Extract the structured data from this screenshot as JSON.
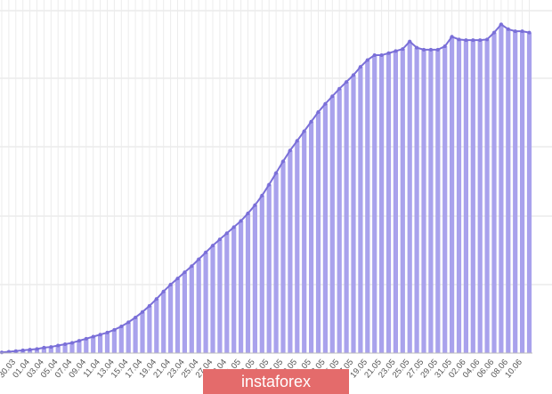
{
  "chart_data": {
    "type": "bar",
    "categories": [
      null,
      "30.03",
      null,
      "01.04",
      null,
      "03.04",
      null,
      "05.04",
      null,
      "07.04",
      null,
      "09.04",
      null,
      "11.04",
      null,
      "13.04",
      null,
      "15.04",
      null,
      "17.04",
      null,
      "19.04",
      null,
      "21.04",
      null,
      "23.04",
      null,
      "25.04",
      null,
      "27.04",
      null,
      "29.04",
      null,
      "01.05",
      null,
      "03.05",
      null,
      "05.05",
      null,
      "07.05",
      null,
      "09.05",
      null,
      "11.05",
      null,
      "13.05",
      null,
      "15.05",
      null,
      "17.05",
      null,
      "19.05",
      null,
      "21.05",
      null,
      "23.05",
      null,
      "25.05",
      null,
      "27.05",
      null,
      "29.05",
      null,
      "31.05",
      null,
      "02.06",
      null,
      "04.06",
      null,
      "06.06",
      null,
      "08.06",
      null,
      "10.06",
      null,
      null
    ],
    "values": [
      0.01,
      0.02,
      0.03,
      0.04,
      0.05,
      0.06,
      0.08,
      0.09,
      0.11,
      0.13,
      0.15,
      0.18,
      0.21,
      0.24,
      0.27,
      0.3,
      0.34,
      0.39,
      0.45,
      0.52,
      0.6,
      0.69,
      0.79,
      0.9,
      1.0,
      1.09,
      1.18,
      1.27,
      1.37,
      1.47,
      1.57,
      1.66,
      1.75,
      1.84,
      1.93,
      2.04,
      2.16,
      2.3,
      2.46,
      2.63,
      2.8,
      2.96,
      3.1,
      3.24,
      3.38,
      3.52,
      3.64,
      3.75,
      3.86,
      3.96,
      4.06,
      4.18,
      4.28,
      4.35,
      4.35,
      4.38,
      4.41,
      4.44,
      4.55,
      4.46,
      4.43,
      4.43,
      4.43,
      4.48,
      4.62,
      4.58,
      4.57,
      4.57,
      4.57,
      4.58,
      4.68,
      4.8,
      4.73,
      4.7,
      4.7,
      4.68
    ],
    "color": "#a9a2ec",
    "line_color": "#7a6fd8",
    "ylim": [
      0,
      5
    ]
  },
  "watermark": "instaforex"
}
